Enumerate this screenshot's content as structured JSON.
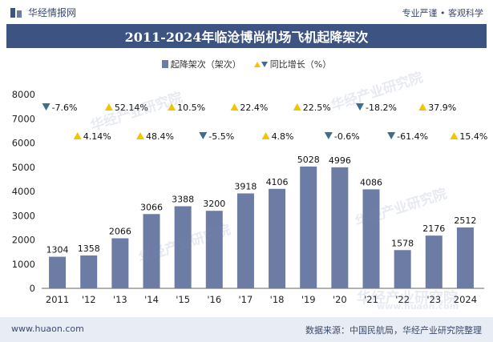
{
  "header": {
    "brand": "华经情报网",
    "tagline": "专业严谨 • 客观科学"
  },
  "title": "2011-2024年临沧博尚机场飞机起降架次",
  "legend": {
    "bar_label": "起降架次（架次）",
    "line_label": "同比增长（%）"
  },
  "watermark": "华经产业研究院",
  "watermark_url": "www.huaon.com",
  "footer": {
    "url": "www.huaon.com",
    "source": "数据来源：中国民航局，华经产业研究院整理"
  },
  "colors": {
    "bar": "#6d7ca4",
    "up": "#f5c400",
    "down": "#3d6e8e",
    "title_bg": "#3d5382"
  },
  "chart_data": {
    "type": "bar",
    "categories": [
      "2011",
      "'12",
      "'13",
      "'14",
      "'15",
      "'16",
      "'17",
      "'18",
      "'19",
      "'20",
      "'21",
      "'22",
      "'23",
      "2024"
    ],
    "series": [
      {
        "name": "起降架次（架次）",
        "values": [
          1304,
          1358,
          2066,
          3066,
          3388,
          3200,
          3918,
          4106,
          5028,
          4996,
          4086,
          1578,
          2176,
          2512
        ]
      },
      {
        "name": "同比增长（%）",
        "values": [
          -7.6,
          4.14,
          52.14,
          48.4,
          10.5,
          -5.5,
          22.4,
          4.8,
          22.5,
          -0.6,
          -18.2,
          -61.4,
          37.9,
          15.4
        ]
      }
    ],
    "growth_labels": [
      "-7.6%",
      "4.14%",
      "52.14%",
      "48.4%",
      "10.5%",
      "-5.5%",
      "22.4%",
      "4.8%",
      "22.5%",
      "-0.6%",
      "-18.2%",
      "-61.4%",
      "37.9%",
      "15.4%"
    ],
    "yticks": [
      0,
      1000,
      2000,
      3000,
      4000,
      5000,
      6000,
      7000,
      8000
    ],
    "ylim": [
      0,
      8000
    ],
    "xlabel": "",
    "ylabel": ""
  }
}
